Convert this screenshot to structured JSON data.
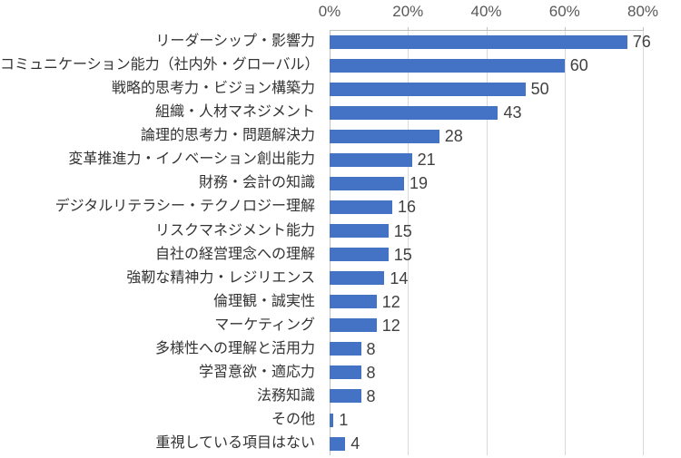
{
  "colors": {
    "bar": "#4472C4",
    "gridline": "#D9D9D9",
    "axis_line": "#BFBFBF",
    "axis_label": "#595959",
    "category_label": "#333333",
    "value_label": "#404040",
    "background": "#FFFFFF"
  },
  "chart_data": {
    "type": "bar",
    "orientation": "horizontal",
    "title": "",
    "legend": false,
    "grid": true,
    "data_labels": true,
    "x_axis": {
      "position": "top",
      "min": 0,
      "max": 80,
      "tick_interval": 20,
      "ticks": [
        "0%",
        "20%",
        "40%",
        "60%",
        "80%"
      ]
    },
    "categories": [
      "リーダーシップ・影響力",
      "コミュニケーション能力（社内外・グローバル）",
      "戦略的思考力・ビジョン構築力",
      "組織・人材マネジメント",
      "論理的思考力・問題解決力",
      "変革推進力・イノベーション創出能力",
      "財務・会計の知識",
      "デジタルリテラシー・テクノロジー理解",
      "リスクマネジメント能力",
      "自社の経営理念への理解",
      "強靭な精神力・レジリエンス",
      "倫理観・誠実性",
      "マーケティング",
      "多様性への理解と活用力",
      "学習意欲・適応力",
      "法務知識",
      "その他",
      "重視している項目はない"
    ],
    "values": [
      76,
      60,
      50,
      43,
      28,
      21,
      19,
      16,
      15,
      15,
      14,
      12,
      12,
      8,
      8,
      8,
      1,
      4
    ]
  }
}
